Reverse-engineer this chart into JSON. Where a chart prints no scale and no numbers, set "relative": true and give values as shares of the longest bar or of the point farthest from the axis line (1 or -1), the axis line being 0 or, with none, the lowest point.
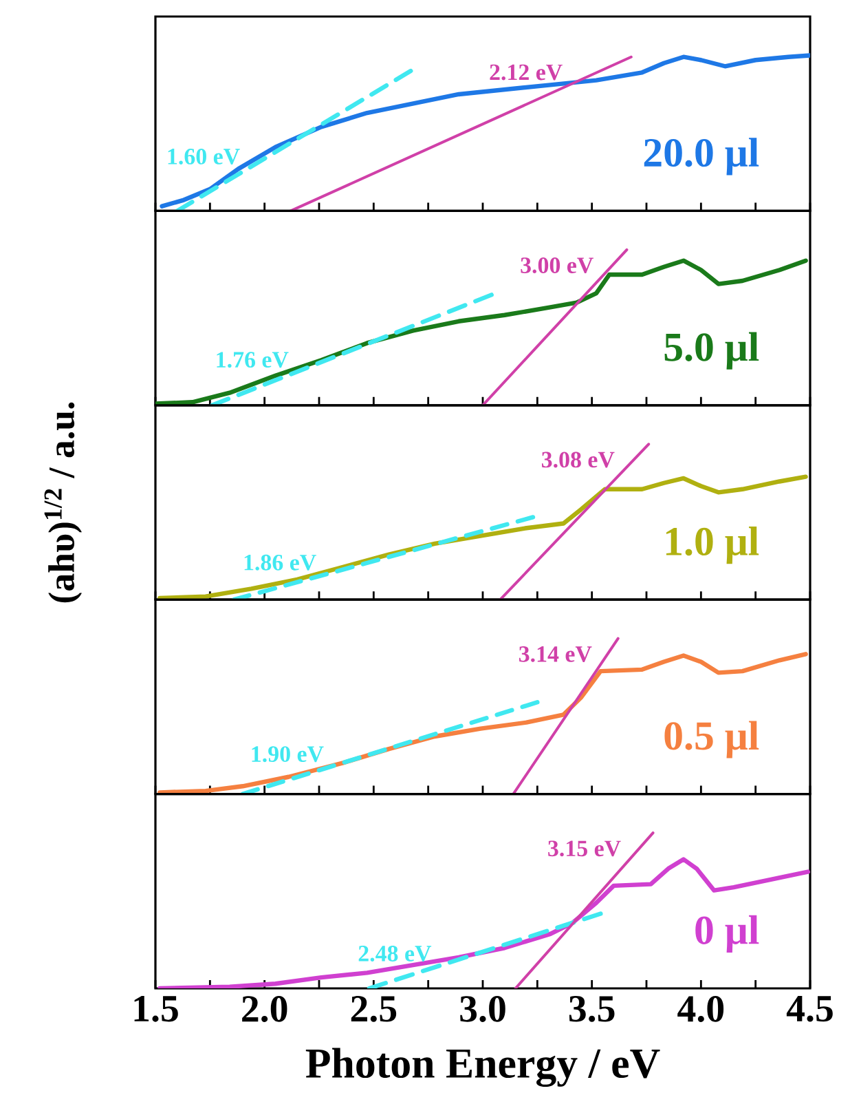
{
  "chart_data": [
    {
      "type": "line",
      "relative": true,
      "tick_labels": false,
      "xlim": [
        1.5,
        4.5
      ],
      "xticks": [
        1.5,
        {
          "value": 1.75,
          "label": null
        },
        2.0,
        {
          "value": 2.25,
          "label": null
        },
        2.5,
        {
          "value": 2.75,
          "label": null
        },
        3.0,
        {
          "value": 3.25,
          "label": null
        },
        3.5,
        {
          "value": 3.75,
          "label": null
        },
        4.0,
        {
          "value": 4.25,
          "label": null
        },
        4.5
      ],
      "series": [
        {
          "name": "20.0 μl",
          "color": "#1e78e6",
          "x": [
            1.53,
            1.63,
            1.75,
            1.88,
            2.05,
            2.26,
            2.47,
            2.68,
            2.89,
            3.1,
            3.31,
            3.52,
            3.73,
            3.83,
            3.92,
            4.0,
            4.11,
            4.25,
            4.4,
            4.5
          ],
          "values": [
            0.03,
            0.07,
            0.14,
            0.27,
            0.41,
            0.54,
            0.63,
            0.69,
            0.75,
            0.78,
            0.81,
            0.84,
            0.89,
            0.95,
            0.99,
            0.97,
            0.93,
            0.97,
            0.99,
            1.0
          ]
        },
        {
          "color": "#40e8f0",
          "line_style": "dashed",
          "x": [
            1.6,
            2.67
          ],
          "values": [
            0,
            0.9
          ]
        },
        {
          "color": "#d040a8",
          "x": [
            2.12,
            3.68
          ],
          "values": [
            0,
            0.99
          ]
        }
      ],
      "annotations": [
        "1.60 eV",
        "2.12 eV"
      ]
    },
    {
      "type": "line",
      "relative": true,
      "tick_labels": false,
      "xlim": [
        1.5,
        4.5
      ],
      "xticks": [
        1.5,
        {
          "value": 1.75,
          "label": null
        },
        2.0,
        {
          "value": 2.25,
          "label": null
        },
        2.5,
        {
          "value": 2.75,
          "label": null
        },
        3.0,
        {
          "value": 3.25,
          "label": null
        },
        3.5,
        {
          "value": 3.75,
          "label": null
        },
        4.0,
        {
          "value": 4.25,
          "label": null
        },
        4.5
      ],
      "series": [
        {
          "name": "5.0 μl",
          "color": "#1a7a1a",
          "x": [
            1.5,
            1.67,
            1.84,
            2.05,
            2.26,
            2.47,
            2.68,
            2.89,
            3.1,
            3.31,
            3.43,
            3.52,
            3.58,
            3.73,
            3.83,
            3.92,
            4.0,
            4.08,
            4.19,
            4.36,
            4.48
          ],
          "values": [
            0.01,
            0.02,
            0.08,
            0.19,
            0.29,
            0.4,
            0.48,
            0.54,
            0.58,
            0.63,
            0.66,
            0.72,
            0.84,
            0.84,
            0.89,
            0.93,
            0.87,
            0.78,
            0.8,
            0.87,
            0.93
          ]
        },
        {
          "color": "#40e8f0",
          "line_style": "dashed",
          "x": [
            1.76,
            3.04
          ],
          "values": [
            0,
            0.71
          ]
        },
        {
          "color": "#d040a8",
          "x": [
            3.0,
            3.66
          ],
          "values": [
            0,
            1.0
          ]
        }
      ],
      "annotations": [
        "1.76 eV",
        "3.00 eV"
      ]
    },
    {
      "type": "line",
      "relative": true,
      "tick_labels": false,
      "xlim": [
        1.5,
        4.5
      ],
      "ylabel": "(ahυ)$^{1/2}$ / a.u.",
      "xticks": [
        1.5,
        {
          "value": 1.75,
          "label": null
        },
        2.0,
        {
          "value": 2.25,
          "label": null
        },
        2.5,
        {
          "value": 2.75,
          "label": null
        },
        3.0,
        {
          "value": 3.25,
          "label": null
        },
        3.5,
        {
          "value": 3.75,
          "label": null
        },
        4.0,
        {
          "value": 4.25,
          "label": null
        },
        4.5
      ],
      "series": [
        {
          "name": "1.0 μl",
          "color": "#b0b010",
          "x": [
            1.52,
            1.73,
            1.94,
            2.15,
            2.36,
            2.57,
            2.78,
            2.99,
            3.2,
            3.37,
            3.45,
            3.56,
            3.73,
            3.83,
            3.92,
            4.0,
            4.08,
            4.19,
            4.36,
            4.48
          ],
          "values": [
            0.01,
            0.02,
            0.07,
            0.13,
            0.21,
            0.29,
            0.36,
            0.41,
            0.46,
            0.49,
            0.58,
            0.71,
            0.71,
            0.75,
            0.78,
            0.73,
            0.69,
            0.71,
            0.76,
            0.79
          ]
        },
        {
          "color": "#40e8f0",
          "line_style": "dashed",
          "x": [
            1.86,
            3.23
          ],
          "values": [
            0,
            0.53
          ]
        },
        {
          "color": "#d040a8",
          "x": [
            3.08,
            3.76
          ],
          "values": [
            0,
            1.0
          ]
        }
      ],
      "annotations": [
        "1.86 eV",
        "3.08 eV"
      ]
    },
    {
      "type": "line",
      "relative": true,
      "tick_labels": false,
      "xlim": [
        1.5,
        4.5
      ],
      "xticks": [
        1.5,
        {
          "value": 1.75,
          "label": null
        },
        2.0,
        {
          "value": 2.25,
          "label": null
        },
        2.5,
        {
          "value": 2.75,
          "label": null
        },
        3.0,
        {
          "value": 3.25,
          "label": null
        },
        3.5,
        {
          "value": 3.75,
          "label": null
        },
        4.0,
        {
          "value": 4.25,
          "label": null
        },
        4.5
      ],
      "series": [
        {
          "name": "0.5 μl",
          "color": "#f58040",
          "x": [
            1.52,
            1.73,
            1.9,
            2.11,
            2.36,
            2.57,
            2.78,
            2.99,
            3.2,
            3.37,
            3.45,
            3.54,
            3.73,
            3.83,
            3.92,
            4.0,
            4.08,
            4.19,
            4.36,
            4.48
          ],
          "values": [
            0.01,
            0.02,
            0.05,
            0.11,
            0.2,
            0.29,
            0.37,
            0.42,
            0.46,
            0.51,
            0.62,
            0.79,
            0.8,
            0.85,
            0.89,
            0.85,
            0.78,
            0.79,
            0.86,
            0.9
          ]
        },
        {
          "color": "#40e8f0",
          "line_style": "dashed",
          "x": [
            1.9,
            3.25
          ],
          "values": [
            0,
            0.59
          ]
        },
        {
          "color": "#d040a8",
          "x": [
            3.14,
            3.62
          ],
          "values": [
            0,
            1.0
          ]
        }
      ],
      "annotations": [
        "1.90 eV",
        "3.14 eV"
      ]
    },
    {
      "type": "line",
      "relative": true,
      "tick_labels": "x",
      "xlim": [
        1.5,
        4.5
      ],
      "xlabel": "Photon Energy / eV",
      "xticks": [
        1.5,
        {
          "value": 1.75,
          "label": null
        },
        {
          "value": 2.0,
          "label": "2.0"
        },
        {
          "value": 2.25,
          "label": null
        },
        2.5,
        {
          "value": 2.75,
          "label": null
        },
        {
          "value": 3.0,
          "label": "3.0"
        },
        {
          "value": 3.25,
          "label": null
        },
        3.5,
        {
          "value": 3.75,
          "label": null
        },
        {
          "value": 4.0,
          "label": "4.0"
        },
        {
          "value": 4.25,
          "label": null
        },
        4.5
      ],
      "series": [
        {
          "name": "0 μl",
          "color": "#d040d0",
          "x": [
            1.52,
            1.84,
            2.05,
            2.26,
            2.47,
            2.68,
            2.89,
            3.1,
            3.31,
            3.41,
            3.52,
            3.6,
            3.77,
            3.85,
            3.92,
            3.98,
            4.06,
            4.15,
            4.32,
            4.49
          ],
          "values": [
            0,
            0.01,
            0.03,
            0.07,
            0.1,
            0.15,
            0.2,
            0.26,
            0.35,
            0.42,
            0.55,
            0.66,
            0.67,
            0.77,
            0.83,
            0.77,
            0.63,
            0.65,
            0.7,
            0.75
          ]
        },
        {
          "color": "#40e8f0",
          "line_style": "dashed",
          "x": [
            2.48,
            3.54
          ],
          "values": [
            0,
            0.48
          ]
        },
        {
          "color": "#d040a8",
          "x": [
            3.15,
            3.78
          ],
          "values": [
            0,
            1.0
          ]
        }
      ],
      "annotations": [
        "2.48 eV",
        "3.15 eV"
      ]
    }
  ]
}
